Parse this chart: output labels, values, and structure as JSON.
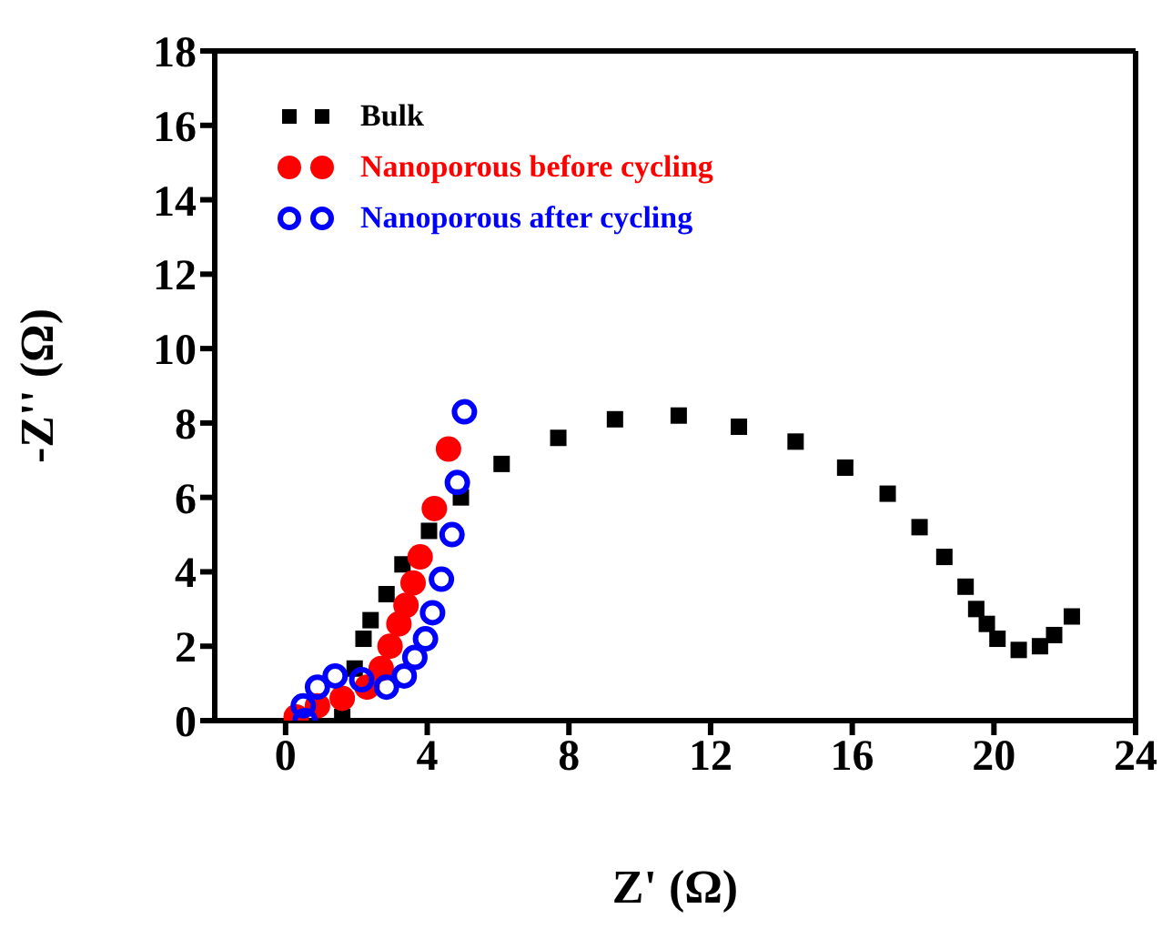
{
  "chart_data": {
    "type": "scatter",
    "xlabel": "Z' (Ω)",
    "ylabel": "-Z'' (Ω)",
    "xlim": [
      -2,
      24
    ],
    "ylim": [
      0,
      18
    ],
    "xticks": [
      0,
      4,
      8,
      12,
      16,
      20,
      24
    ],
    "yticks": [
      0,
      2,
      4,
      6,
      8,
      10,
      12,
      14,
      16,
      18
    ],
    "legend": "top left",
    "series": [
      {
        "name": "Bulk",
        "color": "#000000",
        "marker": "square",
        "x": [
          1.6,
          1.95,
          2.2,
          2.4,
          2.85,
          3.3,
          4.05,
          4.95,
          6.1,
          7.7,
          9.3,
          11.1,
          12.8,
          14.4,
          15.8,
          17.0,
          17.9,
          18.6,
          19.2,
          19.5,
          19.8,
          20.1,
          20.7,
          21.3,
          21.7,
          22.2
        ],
        "values": [
          0.1,
          1.4,
          2.2,
          2.7,
          3.4,
          4.2,
          5.1,
          6.0,
          6.9,
          7.6,
          8.1,
          8.2,
          7.9,
          7.5,
          6.8,
          6.1,
          5.2,
          4.4,
          3.6,
          3.0,
          2.6,
          2.2,
          1.9,
          2.0,
          2.3,
          2.8
        ]
      },
      {
        "name": "Nanoporous before cycling",
        "color": "#ff0000",
        "marker": "circle",
        "x": [
          0.3,
          0.9,
          1.6,
          2.3,
          2.7,
          2.95,
          3.2,
          3.4,
          3.6,
          3.8,
          4.2,
          4.6
        ],
        "values": [
          0.1,
          0.4,
          0.6,
          0.9,
          1.4,
          2.0,
          2.6,
          3.1,
          3.7,
          4.4,
          5.7,
          7.3
        ]
      },
      {
        "name": "Nanoporous after cycling",
        "color": "#0000ff",
        "marker": "open circle",
        "x": [
          0.55,
          0.5,
          0.9,
          1.4,
          2.15,
          2.85,
          3.35,
          3.65,
          3.95,
          4.15,
          4.4,
          4.7,
          4.85,
          5.05
        ],
        "values": [
          0.0,
          0.4,
          0.9,
          1.2,
          1.1,
          0.9,
          1.2,
          1.7,
          2.2,
          2.9,
          3.8,
          5.0,
          6.4,
          8.3
        ]
      }
    ]
  }
}
